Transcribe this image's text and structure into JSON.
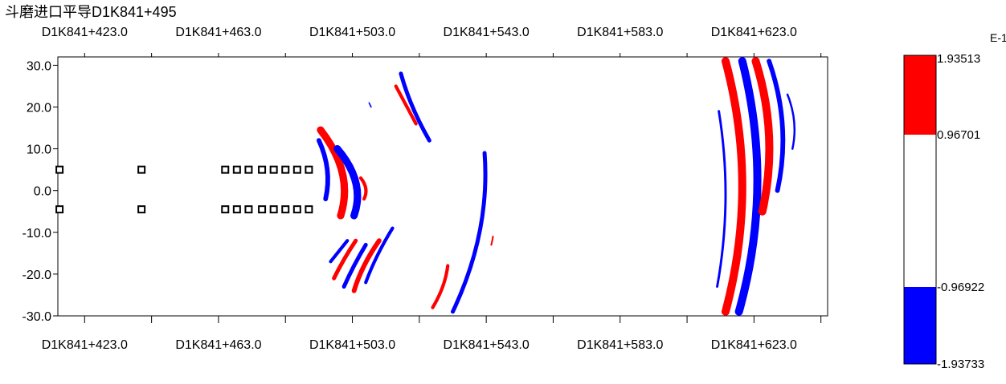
{
  "title": "斗磨进口平导D1K841+495",
  "chart_data": {
    "type": "heatmap",
    "top_tick_labels": [
      "D1K841+423.0",
      "D1K841+463.0",
      "D1K841+503.0",
      "D1K841+543.0",
      "D1K841+583.0",
      "D1K841+623.0"
    ],
    "bottom_tick_labels": [
      "D1K841+423.0",
      "D1K841+463.0",
      "D1K841+503.0",
      "D1K841+543.0",
      "D1K841+583.0",
      "D1K841+623.0"
    ],
    "x_ticks": [
      423,
      463,
      503,
      543,
      583,
      623
    ],
    "xlim": [
      415,
      645
    ],
    "ylim": [
      -30,
      32
    ],
    "y_ticks": [
      30,
      20,
      10,
      0,
      -10,
      -20,
      -30
    ],
    "y_tick_labels": [
      "30.0",
      "20.0",
      "10.0",
      "0.0",
      "-10.0",
      "-20.0",
      "-30.0"
    ],
    "markers": {
      "upper_y": 5,
      "lower_y": -4.5,
      "x": [
        415.5,
        440,
        465,
        468.5,
        472,
        476,
        479.5,
        483,
        486.5,
        490
      ]
    },
    "arcs": [
      {
        "color": "#0000ff",
        "y_top": 12,
        "y_bottom": -2,
        "x_top": 493,
        "x_mid": 495.5,
        "x_bottom": 495,
        "w": 1.4
      },
      {
        "color": "#ff0000",
        "y_top": 14.5,
        "y_bottom": -6,
        "x_top": 493.5,
        "x_mid": 500,
        "x_bottom": 499.5,
        "w": 2.2
      },
      {
        "color": "#0000ff",
        "y_top": 10,
        "y_bottom": -6,
        "x_top": 498.5,
        "x_mid": 504,
        "x_bottom": 503.5,
        "w": 2.2
      },
      {
        "color": "#ff0000",
        "y_top": 3,
        "y_bottom": -2,
        "x_top": 505.5,
        "x_mid": 507,
        "x_bottom": 506.5,
        "w": 1.0
      },
      {
        "color": "#ff0000",
        "y_top": 25,
        "y_bottom": 16,
        "x_top": 516,
        "x_mid": 519,
        "x_bottom": 522,
        "w": 1.0
      },
      {
        "color": "#0000ff",
        "y_top": 28,
        "y_bottom": 12,
        "x_top": 517.5,
        "x_mid": 521,
        "x_bottom": 526,
        "w": 1.2
      },
      {
        "color": "#0000ff",
        "y_top": 21,
        "y_bottom": 20,
        "x_top": 508,
        "x_mid": 508.3,
        "x_bottom": 508.6,
        "w": 0.4
      },
      {
        "color": "#0000ff",
        "y_top": -12,
        "y_bottom": -17,
        "x_top": 501.5,
        "x_mid": 499,
        "x_bottom": 496.5,
        "w": 1.0
      },
      {
        "color": "#ff0000",
        "y_top": -12,
        "y_bottom": -21,
        "x_top": 504,
        "x_mid": 500.5,
        "x_bottom": 497.5,
        "w": 1.2
      },
      {
        "color": "#0000ff",
        "y_top": -13,
        "y_bottom": -23,
        "x_top": 507,
        "x_mid": 503.5,
        "x_bottom": 500.5,
        "w": 1.2
      },
      {
        "color": "#ff0000",
        "y_top": -12,
        "y_bottom": -24,
        "x_top": 511,
        "x_mid": 506.5,
        "x_bottom": 503.5,
        "w": 1.4
      },
      {
        "color": "#0000ff",
        "y_top": -9,
        "y_bottom": -22,
        "x_top": 515,
        "x_mid": 510.5,
        "x_bottom": 507,
        "w": 1.0
      },
      {
        "color": "#ff0000",
        "y_top": -18,
        "y_bottom": -28,
        "x_top": 531.5,
        "x_mid": 530,
        "x_bottom": 527,
        "w": 1.0
      },
      {
        "color": "#0000ff",
        "y_top": 9,
        "y_bottom": -29,
        "x_top": 542.5,
        "x_mid": 541,
        "x_bottom": 533,
        "w": 1.2
      },
      {
        "color": "#ff0000",
        "y_top": -11,
        "y_bottom": -13,
        "x_top": 545,
        "x_mid": 544.8,
        "x_bottom": 544.5,
        "w": 0.5
      },
      {
        "color": "#0000ff",
        "y_top": 19,
        "y_bottom": -23,
        "x_top": 612.5,
        "x_mid": 614.5,
        "x_bottom": 612,
        "w": 0.7
      },
      {
        "color": "#ff0000",
        "y_top": 31,
        "y_bottom": -29,
        "x_top": 614.5,
        "x_mid": 619.5,
        "x_bottom": 614.5,
        "w": 2.4
      },
      {
        "color": "#0000ff",
        "y_top": 31,
        "y_bottom": -29,
        "x_top": 619.5,
        "x_mid": 624,
        "x_bottom": 618.5,
        "w": 2.4
      },
      {
        "color": "#ff0000",
        "y_top": 31,
        "y_bottom": -5,
        "x_top": 623.5,
        "x_mid": 627.5,
        "x_bottom": 625.5,
        "w": 2.4
      },
      {
        "color": "#0000ff",
        "y_top": 31,
        "y_bottom": 0,
        "x_top": 627.5,
        "x_mid": 631.5,
        "x_bottom": 630,
        "w": 1.4
      },
      {
        "color": "#0000ff",
        "y_top": 23,
        "y_bottom": 10,
        "x_top": 633,
        "x_mid": 635,
        "x_bottom": 634.5,
        "w": 0.6
      }
    ]
  },
  "legend": {
    "unit": "E-1",
    "labels": [
      "1.93513",
      "0.96701",
      "-0.96922",
      "-1.93733"
    ],
    "colors": {
      "high": "#ff0000",
      "mid": "#ffffff",
      "low": "#0000ff"
    }
  }
}
